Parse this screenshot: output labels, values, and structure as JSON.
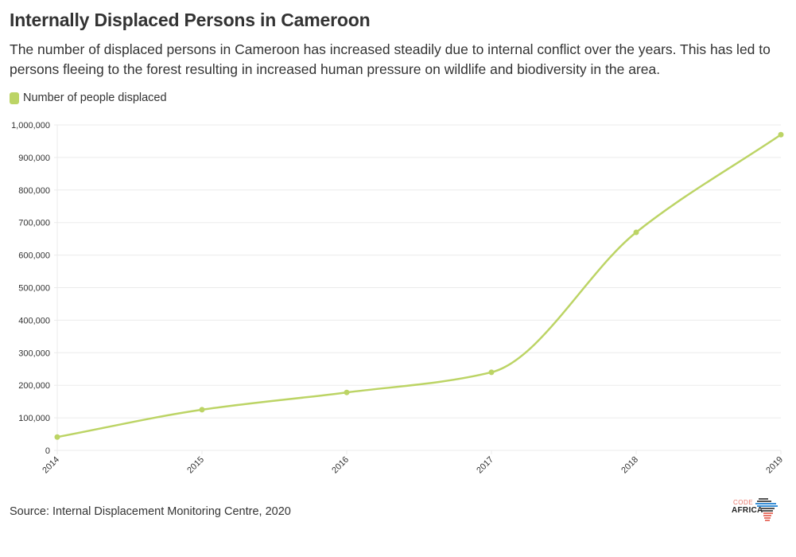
{
  "header": {
    "title": "Internally Displaced Persons in Cameroon",
    "subtitle": "The number of displaced persons in Cameroon has increased steadily due to internal conflict over the years. This has led to persons fleeing to the forest resulting in increased human pressure on wildlife and biodiversity in the area."
  },
  "legend": {
    "label": "Number of people displaced",
    "color": "#bcd465"
  },
  "footer": {
    "source": "Source: Internal Displacement Monitoring Centre, 2020",
    "logo_top": "CODE",
    "logo_bottom": "AFRICA"
  },
  "colors": {
    "series": "#bcd465",
    "grid": "#ebebeb",
    "text": "#333333"
  },
  "chart_data": {
    "type": "line",
    "title": "Internally Displaced Persons in Cameroon",
    "xlabel": "",
    "ylabel": "",
    "x": [
      "2014",
      "2015",
      "2016",
      "2017",
      "2018",
      "2019"
    ],
    "series": [
      {
        "name": "Number of people displaced",
        "values": [
          41000,
          125000,
          178000,
          240000,
          670000,
          970000
        ]
      }
    ],
    "ylim": [
      0,
      1000000
    ],
    "yticks": [
      0,
      100000,
      200000,
      300000,
      400000,
      500000,
      600000,
      700000,
      800000,
      900000,
      1000000
    ],
    "ytick_labels": [
      "0",
      "100,000",
      "200,000",
      "300,000",
      "400,000",
      "500,000",
      "600,000",
      "700,000",
      "800,000",
      "900,000",
      "1,000,000"
    ],
    "grid": true,
    "legend_position": "top-left",
    "curve": "smooth",
    "markers": true
  }
}
